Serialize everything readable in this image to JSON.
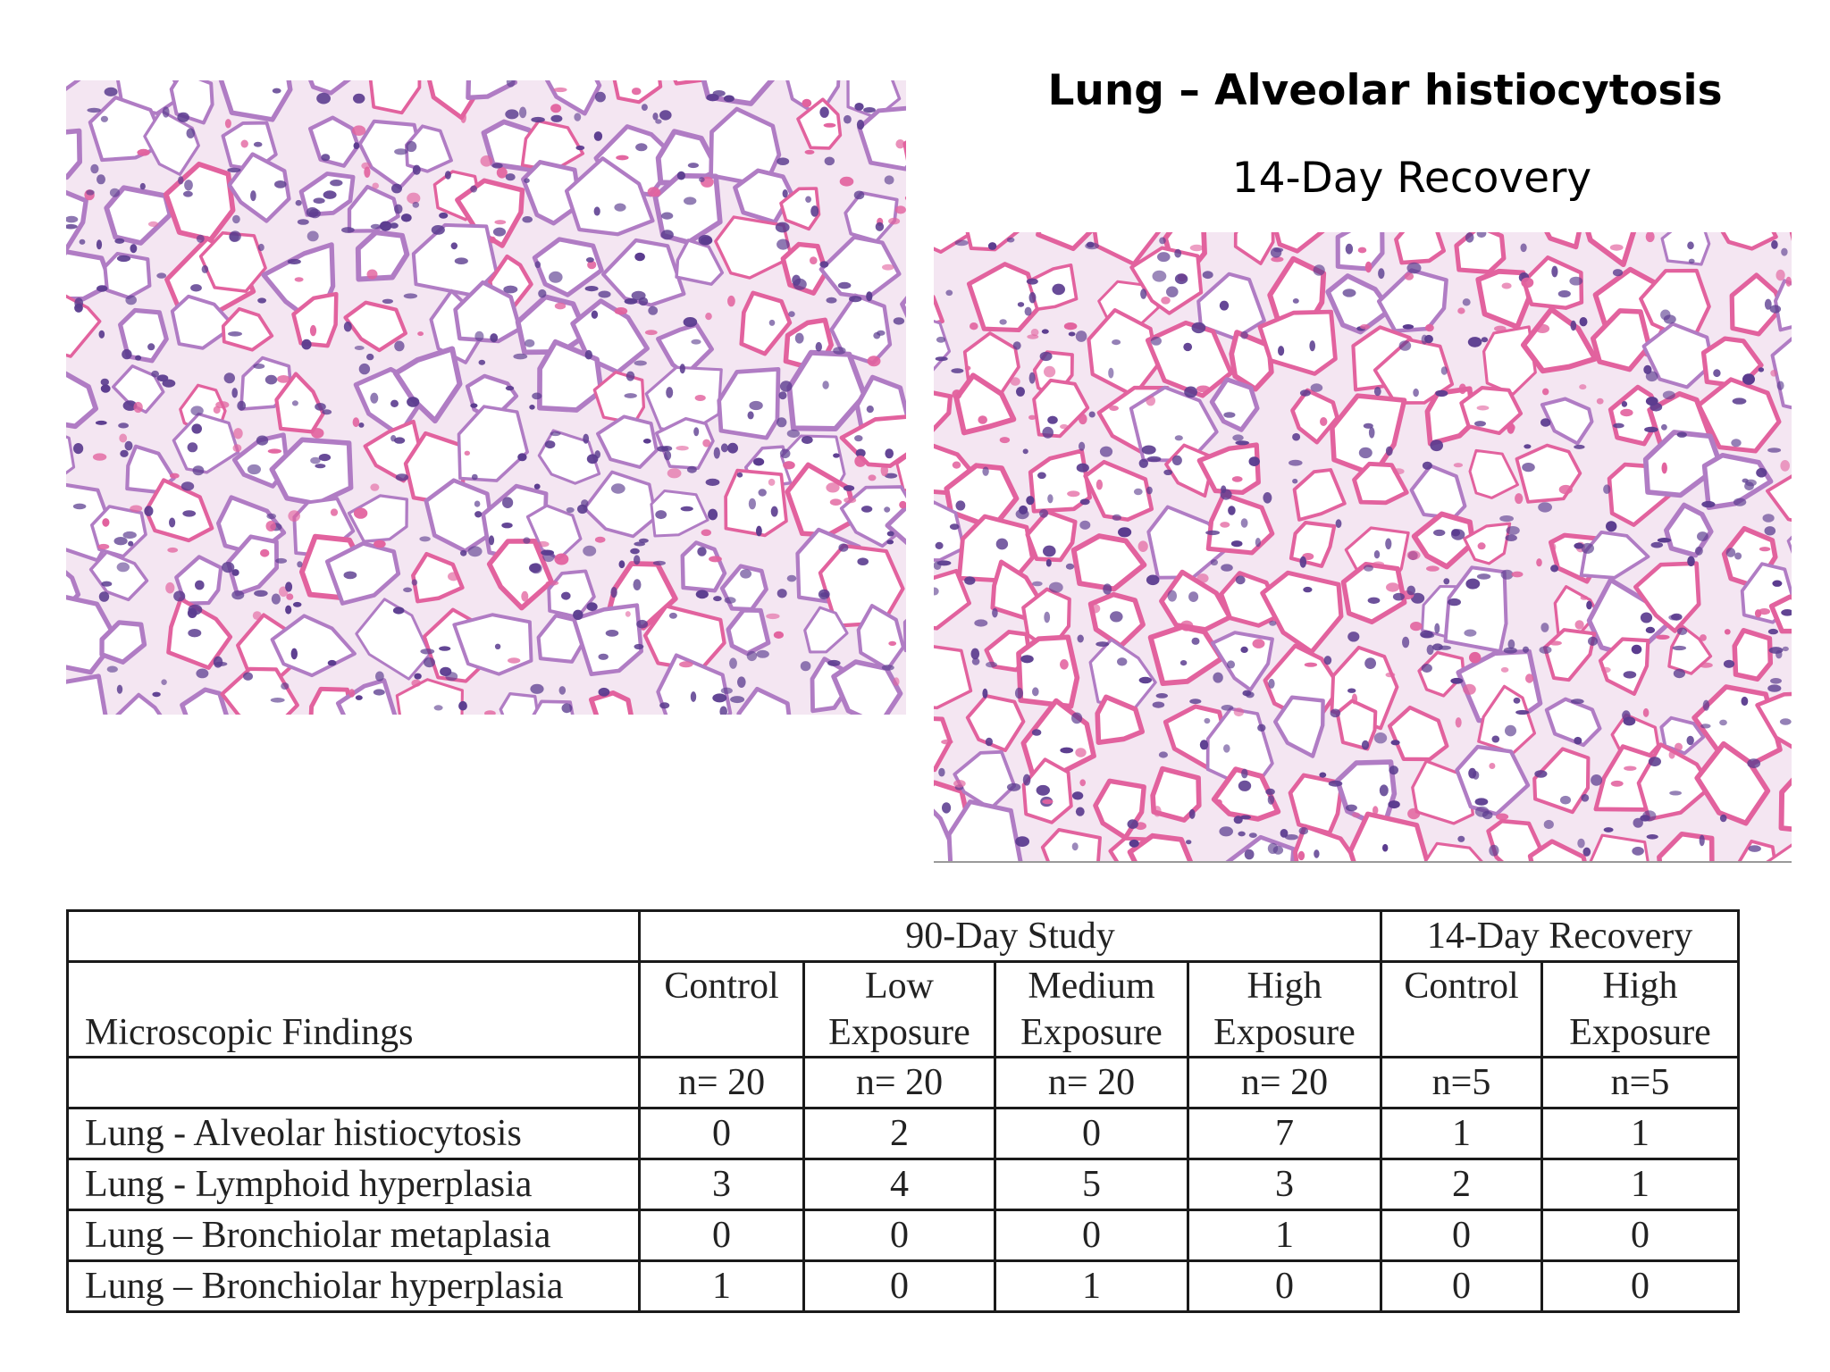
{
  "slide": {
    "title": "Lung – Alveolar histiocytosis",
    "subtitle": "14-Day Recovery"
  },
  "images": {
    "left": {
      "name": "lung histology micrograph (alveolar histiocytosis)"
    },
    "right": {
      "name": "lung histology micrograph (14-day recovery)"
    }
  },
  "table": {
    "group_headers": [
      "90-Day Study",
      "14-Day Recovery"
    ],
    "row_label_header": "Microscopic Findings",
    "columns": [
      {
        "line1": "Control",
        "line2": "",
        "n": "n= 20"
      },
      {
        "line1": "Low",
        "line2": "Exposure",
        "n": "n= 20"
      },
      {
        "line1": "Medium",
        "line2": "Exposure",
        "n": "n= 20"
      },
      {
        "line1": "High",
        "line2": "Exposure",
        "n": "n= 20"
      },
      {
        "line1": "Control",
        "line2": "",
        "n": "n=5"
      },
      {
        "line1": "High",
        "line2": "Exposure",
        "n": "n=5"
      }
    ],
    "rows": [
      {
        "label": "Lung - Alveolar histiocytosis",
        "values": [
          "0",
          "2",
          "0",
          "7",
          "1",
          "1"
        ]
      },
      {
        "label": "Lung - Lymphoid hyperplasia",
        "values": [
          "3",
          "4",
          "5",
          "3",
          "2",
          "1"
        ]
      },
      {
        "label": "Lung – Bronchiolar metaplasia",
        "values": [
          "0",
          "0",
          "0",
          "1",
          "0",
          "0"
        ]
      },
      {
        "label": "Lung – Bronchiolar hyperplasia",
        "values": [
          "1",
          "0",
          "1",
          "0",
          "0",
          "0"
        ]
      }
    ]
  },
  "colors": {
    "stain_pink": "#e2629e",
    "stain_purple": "#5b3c8f",
    "tissue_background": "#f7eef6",
    "table_border": "#1a1a1a"
  }
}
